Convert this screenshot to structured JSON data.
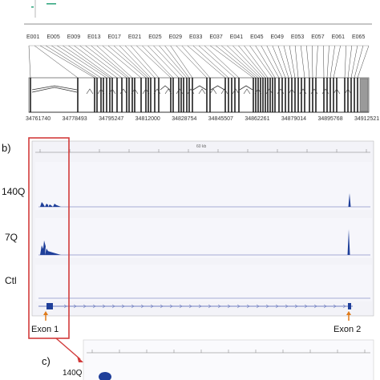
{
  "panel_a": {
    "letter": "",
    "exon_labels": [
      "E001",
      "E005",
      "E009",
      "E013",
      "E017",
      "E021",
      "E025",
      "E029",
      "E033",
      "E037",
      "E041",
      "E045",
      "E049",
      "E053",
      "E057",
      "E061",
      "E065"
    ],
    "coordinate_labels": [
      "34761740",
      "34778493",
      "34795247",
      "34812000",
      "34828754",
      "34845507",
      "34862261",
      "34879014",
      "34895768",
      "34912521"
    ]
  },
  "panel_b": {
    "letter": "b)",
    "ruler_text": "60 kb",
    "tracks": [
      {
        "label": "140Q"
      },
      {
        "label": "7Q"
      },
      {
        "label": "Ctl"
      }
    ],
    "exon1_label": "Exon 1",
    "exon2_label": "Exon 2",
    "colors": {
      "signal": "#1f3f9a",
      "highlight": "#d23b3b",
      "arrow": "#e07b1a",
      "panel_bg": "#f3f3f8"
    }
  },
  "panel_c": {
    "letter": "c)",
    "track_label": "140Q"
  }
}
